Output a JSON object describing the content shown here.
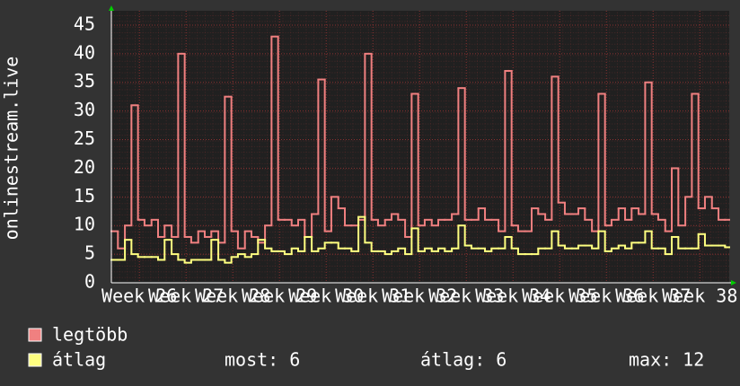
{
  "chart_data": {
    "type": "line",
    "y_label": "onlinestream.live",
    "xlim": [
      25.4,
      38.63
    ],
    "ylim": [
      0,
      47.5
    ],
    "yticks": [
      0,
      5,
      10,
      15,
      20,
      25,
      30,
      35,
      40,
      45
    ],
    "xticks": [
      {
        "value": 26,
        "label": "Week 26"
      },
      {
        "value": 27,
        "label": "Week 27"
      },
      {
        "value": 28,
        "label": "Week 28"
      },
      {
        "value": 29,
        "label": "Week 29"
      },
      {
        "value": 30,
        "label": "Week 30"
      },
      {
        "value": 31,
        "label": "Week 31"
      },
      {
        "value": 32,
        "label": "Week 32"
      },
      {
        "value": 33,
        "label": "Week 33"
      },
      {
        "value": 34,
        "label": "Week 34"
      },
      {
        "value": 35,
        "label": "Week 35"
      },
      {
        "value": 36,
        "label": "Week 36"
      },
      {
        "value": 37,
        "label": "Week 37"
      },
      {
        "value": 38,
        "label": "Week 38"
      }
    ],
    "grid": true,
    "x": [
      25.4,
      25.54,
      25.69,
      25.83,
      25.97,
      26.11,
      26.26,
      26.4,
      26.54,
      26.69,
      26.83,
      26.97,
      27.11,
      27.26,
      27.4,
      27.54,
      27.69,
      27.83,
      27.97,
      28.11,
      28.26,
      28.4,
      28.54,
      28.69,
      28.83,
      28.97,
      29.11,
      29.26,
      29.4,
      29.54,
      29.69,
      29.83,
      29.97,
      30.11,
      30.26,
      30.4,
      30.54,
      30.69,
      30.83,
      30.97,
      31.11,
      31.26,
      31.4,
      31.54,
      31.69,
      31.83,
      31.97,
      32.11,
      32.26,
      32.4,
      32.54,
      32.69,
      32.83,
      32.97,
      33.11,
      33.26,
      33.4,
      33.54,
      33.69,
      33.83,
      33.97,
      34.11,
      34.26,
      34.4,
      34.54,
      34.69,
      34.83,
      34.97,
      35.11,
      35.26,
      35.4,
      35.54,
      35.69,
      35.83,
      35.97,
      36.11,
      36.26,
      36.4,
      36.54,
      36.69,
      36.83,
      36.97,
      37.11,
      37.26,
      37.4,
      37.54,
      37.69,
      37.83,
      37.97,
      38.11,
      38.26,
      38.4,
      38.54
    ],
    "series": [
      {
        "name": "legtöbb",
        "color": "#f08080",
        "values": [
          9,
          6,
          10,
          31,
          11,
          10,
          11,
          8,
          10,
          8,
          40,
          8,
          7,
          9,
          8,
          9,
          7,
          32.5,
          9,
          6,
          9,
          8,
          7,
          10,
          43,
          11,
          11,
          10,
          11,
          8,
          12,
          35.5,
          9,
          15,
          13,
          10,
          10,
          11,
          40,
          11,
          10,
          11,
          12,
          11,
          8,
          33,
          10,
          11,
          10,
          11,
          11,
          12,
          34,
          11,
          11,
          13,
          11,
          11,
          9,
          37,
          10,
          9,
          9,
          13,
          12,
          11,
          36,
          14,
          12,
          12,
          13,
          11,
          9,
          33,
          10,
          11,
          13,
          11,
          13,
          12,
          35,
          12,
          11,
          9,
          20,
          10,
          15,
          33,
          13,
          15,
          13,
          11,
          11
        ]
      },
      {
        "name": "átlag",
        "color": "#ffff80",
        "values": [
          4,
          4,
          7.5,
          5,
          4.5,
          4.5,
          4.5,
          4,
          7.5,
          5,
          4,
          3.5,
          4,
          4,
          4,
          7.5,
          4,
          3.5,
          4.5,
          5,
          4.5,
          5,
          7.5,
          6,
          5.5,
          5.5,
          5,
          6,
          5.5,
          8,
          5.5,
          6,
          7,
          7,
          6,
          6,
          5.5,
          11.5,
          7,
          5.5,
          5.5,
          5,
          5.5,
          6,
          5,
          9.5,
          5.5,
          6,
          5.5,
          6,
          5.5,
          6,
          10,
          6.5,
          6,
          6,
          5.5,
          6,
          6,
          8,
          6,
          5,
          5,
          5,
          6,
          6,
          9,
          6.5,
          6,
          6,
          6.5,
          6.5,
          6,
          9,
          5.5,
          6,
          6.5,
          6,
          7,
          7,
          9,
          6,
          6,
          5,
          8,
          6,
          6,
          6,
          8.5,
          6.5,
          6.5,
          6.5,
          6.2
        ]
      }
    ],
    "stats": [
      {
        "label": "most:",
        "value": 6
      },
      {
        "label": "átlag:",
        "value": 6
      },
      {
        "label": "max:",
        "value": 12
      }
    ]
  }
}
